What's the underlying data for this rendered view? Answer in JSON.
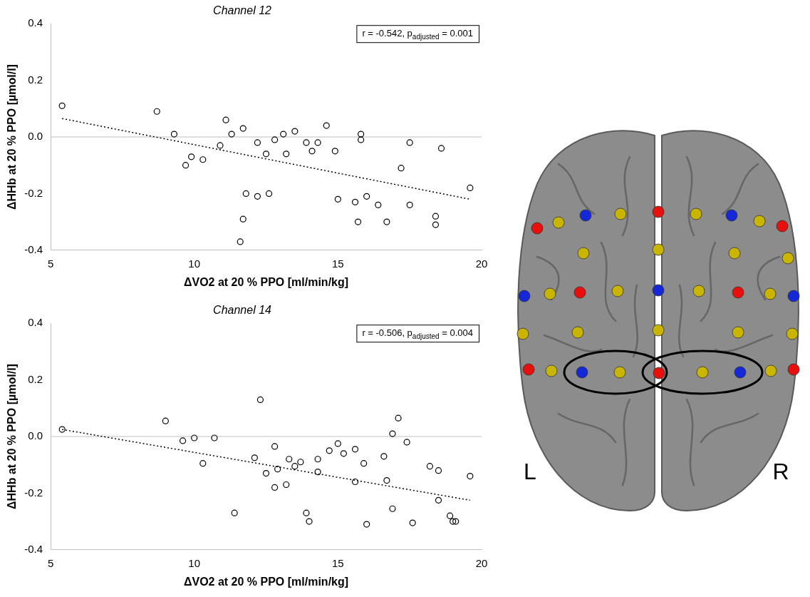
{
  "chart_data": [
    {
      "type": "scatter",
      "title": "Channel 12",
      "x_label": "ΔVO2 at 20 % PPO [ml/min/kg]",
      "y_label": "ΔHHb at 20 % PPO [µmol/l]",
      "x": [
        5.4,
        8.7,
        9.3,
        9.7,
        9.9,
        10.3,
        10.9,
        11.1,
        11.3,
        11.6,
        11.7,
        11.7,
        11.8,
        12.2,
        12.2,
        12.5,
        12.6,
        12.8,
        13.1,
        13.2,
        13.5,
        13.9,
        14.1,
        14.3,
        14.6,
        14.9,
        15.0,
        15.6,
        15.7,
        15.8,
        15.8,
        16.0,
        16.4,
        16.7,
        17.2,
        17.5,
        17.5,
        18.4,
        18.4,
        18.6,
        19.6
      ],
      "values": [
        0.11,
        0.09,
        0.01,
        -0.1,
        -0.07,
        -0.08,
        -0.03,
        0.06,
        0.01,
        -0.37,
        0.03,
        -0.29,
        -0.2,
        -0.21,
        -0.02,
        -0.06,
        -0.2,
        -0.01,
        0.01,
        -0.06,
        0.02,
        -0.02,
        -0.05,
        -0.02,
        0.04,
        -0.05,
        -0.22,
        -0.23,
        -0.3,
        0.01,
        -0.01,
        -0.21,
        -0.24,
        -0.3,
        -0.11,
        -0.02,
        -0.24,
        -0.28,
        -0.31,
        -0.04,
        -0.18
      ],
      "marker": "circle",
      "color": "#000000",
      "trend_line": {
        "x": [
          5.4,
          19.6
        ],
        "values": [
          0.065,
          -0.22
        ],
        "line_style": "dotted",
        "color": "#000000"
      },
      "annotation": {
        "text": "r = -0.542, p",
        "subscript": "adjusted",
        "tail": " = 0.001"
      },
      "xlim": [
        5,
        20
      ],
      "xticks": [
        5,
        10,
        15,
        20
      ],
      "ylim": [
        -0.4,
        0.4
      ],
      "yticks": [
        -0.4,
        -0.2,
        {
          "value": 0,
          "label": "0.0"
        },
        0.2,
        0.4
      ],
      "grid": false
    },
    {
      "type": "scatter",
      "title": "Channel 14",
      "x_label": "ΔVO2 at 20 % PPO [ml/min/kg]",
      "y_label": "ΔHHb at 20 % PPO [µmol/l]",
      "x": [
        5.4,
        9.0,
        9.6,
        10.0,
        10.3,
        10.7,
        11.4,
        12.1,
        12.3,
        12.5,
        12.8,
        12.8,
        12.9,
        13.2,
        13.3,
        13.5,
        13.7,
        13.9,
        14.0,
        14.3,
        14.3,
        14.7,
        15.0,
        15.2,
        15.6,
        15.6,
        15.9,
        16.0,
        16.6,
        16.7,
        16.9,
        16.9,
        17.1,
        17.4,
        17.6,
        18.2,
        18.5,
        18.5,
        18.9,
        19.0,
        19.1,
        19.6
      ],
      "values": [
        0.025,
        0.055,
        -0.015,
        -0.005,
        -0.095,
        -0.005,
        -0.27,
        -0.075,
        0.13,
        -0.13,
        -0.035,
        -0.18,
        -0.115,
        -0.17,
        -0.08,
        -0.105,
        -0.09,
        -0.27,
        -0.3,
        -0.08,
        -0.125,
        -0.05,
        -0.025,
        -0.06,
        -0.16,
        -0.045,
        -0.095,
        -0.31,
        -0.07,
        -0.155,
        -0.255,
        0.01,
        0.065,
        -0.02,
        -0.305,
        -0.105,
        -0.12,
        -0.225,
        -0.28,
        -0.3,
        -0.3,
        -0.14
      ],
      "marker": "circle",
      "color": "#000000",
      "trend_line": {
        "x": [
          5.4,
          19.6
        ],
        "values": [
          0.025,
          -0.225
        ],
        "line_style": "dotted",
        "color": "#000000"
      },
      "annotation": {
        "text": "r = -0.506, p",
        "subscript": "adjusted",
        "tail": " = 0.004"
      },
      "xlim": [
        5,
        20
      ],
      "xticks": [
        5,
        10,
        15,
        20
      ],
      "ylim": [
        -0.4,
        0.4
      ],
      "yticks": [
        -0.4,
        -0.2,
        {
          "value": 0,
          "label": "0.0"
        },
        0.2,
        0.4
      ],
      "grid": false
    }
  ],
  "diagram": {
    "labels": [
      "L",
      "R"
    ]
  }
}
